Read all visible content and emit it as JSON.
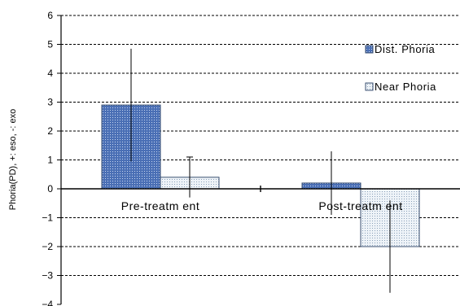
{
  "chart_data": {
    "type": "bar",
    "categories": [
      "Pre-treatm ent",
      "Post-treatm ent"
    ],
    "series": [
      {
        "name": "Dist. Phoria",
        "values": [
          2.9,
          0.2
        ],
        "errors": [
          1.95,
          1.1
        ],
        "color": "#4a6fb5"
      },
      {
        "name": "Near Phoria",
        "values": [
          0.4,
          -2.0
        ],
        "errors": [
          0.7,
          1.6
        ],
        "color": "#e4ecf4"
      }
    ],
    "title": "",
    "xlabel": "",
    "ylabel": "Phoria(PD), +: eso, -: exo",
    "ylim": [
      -4,
      6
    ],
    "yticks": [
      -4,
      -3,
      -2,
      -1,
      0,
      1,
      2,
      3,
      4,
      5,
      6
    ],
    "grid": true,
    "legend": "right"
  }
}
